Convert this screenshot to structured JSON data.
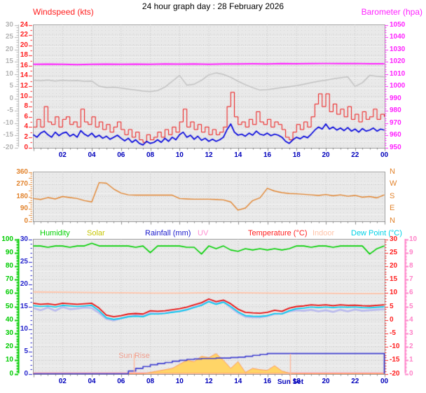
{
  "title": "24 hour graph day : 28 February 2026",
  "legend": {
    "items": [
      {
        "label": "Humidity",
        "color": "#00d000"
      },
      {
        "label": "Solar",
        "color": "#c6c600"
      },
      {
        "label": "Rainfall (mm)",
        "color": "#1a1acc"
      },
      {
        "label": "UV",
        "color": "#ff8fd2"
      },
      {
        "label": "Temperature (°C)",
        "color": "#ff2020"
      },
      {
        "label": "Indoor",
        "color": "#ffc3a8"
      },
      {
        "label": "Dew Point (°C)",
        "color": "#00d2e6"
      }
    ]
  },
  "chart_data": [
    {
      "type": "line",
      "title_left": "Windspeed (kts)",
      "title_right": "Barometer (hpa)",
      "x": {
        "min": 0,
        "max": 24,
        "tick_hours": [
          2,
          4,
          6,
          8,
          10,
          12,
          14,
          16,
          18,
          20,
          22,
          24
        ],
        "tick_labels": [
          "02",
          "04",
          "06",
          "08",
          "10",
          "12",
          "14",
          "16",
          "18",
          "20",
          "22",
          "00"
        ],
        "label_color": "#0000bb"
      },
      "axes": {
        "outer_gray": {
          "min": -20,
          "max": 30,
          "ticks": [
            30,
            25,
            20,
            15,
            10,
            5,
            0,
            -5,
            -10,
            -15,
            -20
          ],
          "color": "#b4b4b4"
        },
        "wind_red": {
          "min": 0,
          "max": 24,
          "ticks": [
            24,
            22,
            20,
            18,
            16,
            14,
            12,
            10,
            8,
            6,
            4,
            2,
            0
          ],
          "color": "#ff2020"
        },
        "baro_magenta": {
          "min": 950,
          "max": 1050,
          "ticks": [
            1050,
            1040,
            1030,
            1020,
            1010,
            1000,
            990,
            980,
            970,
            960,
            950
          ],
          "color": "#ff22ff"
        }
      },
      "series": [
        {
          "name": "gray-trend-line",
          "axis": "outer_gray",
          "color": "#c2c2c2",
          "width": 1.5,
          "dt": 0.5,
          "values": [
            7.4,
            7.2,
            7.5,
            7.1,
            7.4,
            7.2,
            7.3,
            7.0,
            7.1,
            5.0,
            4.4,
            4.6,
            4.2,
            3.8,
            3.4,
            3.0,
            2.8,
            3.2,
            4.6,
            7.0,
            9.4,
            5.4,
            5.8,
            7.4,
            9.6,
            10.4,
            9.8,
            8.6,
            7.0,
            5.6,
            4.4,
            3.4,
            3.6,
            4.0,
            4.4,
            4.8,
            5.2,
            5.8,
            6.4,
            7.0,
            7.4,
            8.0,
            8.4,
            8.8,
            4.9,
            6.4,
            9.4,
            9.0,
            8.8
          ]
        },
        {
          "name": "barometer",
          "axis": "baro_magenta",
          "color": "#ff22ff",
          "width": 2,
          "dt": 1,
          "values": [
            1017.8,
            1018,
            1017.8,
            1017.6,
            1017.9,
            1018,
            1017.8,
            1018,
            1017.9,
            1018.1,
            1018,
            1018.2,
            1017.9,
            1018.1,
            1018.2,
            1018.3,
            1018.2,
            1018.4,
            1018.3,
            1018.4,
            1018.5,
            1018.4,
            1018.5,
            1018.3,
            1018.3
          ]
        },
        {
          "name": "wind-gust",
          "axis": "wind_red",
          "color": "#ee1111",
          "width": 1,
          "style": "step",
          "dt": 0.25,
          "values": [
            4,
            5.5,
            4,
            8,
            5,
            4.5,
            6,
            4,
            5.5,
            6,
            4.5,
            5,
            4,
            7.5,
            5,
            4.5,
            6,
            4,
            5,
            3.5,
            4.5,
            3,
            4,
            5,
            3.5,
            2.5,
            3.5,
            2,
            3,
            1.5,
            1,
            2.5,
            1.5,
            2,
            3,
            2,
            3.5,
            2.5,
            4,
            3,
            5,
            7.5,
            4,
            5,
            3.5,
            4.5,
            3,
            4,
            2.5,
            3.5,
            2.5,
            3,
            4,
            8,
            10.8,
            6,
            4.5,
            5,
            4,
            5.5,
            4.5,
            7,
            5,
            4.5,
            5.5,
            4,
            5,
            4.5,
            3.5,
            2,
            1.5,
            3,
            4.5,
            3.5,
            5,
            4,
            6,
            8.5,
            10.5,
            8,
            10.5,
            7,
            8.5,
            6.5,
            7.5,
            6,
            8,
            5.5,
            6.5,
            5,
            7,
            5.5,
            6,
            7.5,
            5.5,
            6.5,
            6
          ]
        },
        {
          "name": "wind-average",
          "axis": "wind_red",
          "color": "#0000dd",
          "width": 1.7,
          "dt": 0.25,
          "values": [
            2.5,
            2,
            2.8,
            3.2,
            2.5,
            2,
            3,
            2.3,
            2.8,
            3,
            2.2,
            2.6,
            2,
            3.3,
            2.6,
            2.2,
            2.8,
            2,
            2.4,
            1.8,
            2.2,
            1.6,
            2,
            2.4,
            1.8,
            1.3,
            1.8,
            1,
            1.5,
            0.8,
            0.5,
            1.2,
            0.8,
            1,
            1.5,
            1,
            1.8,
            1.2,
            2,
            1.5,
            2.5,
            3,
            2,
            2.4,
            1.6,
            2.2,
            1.4,
            1.8,
            1.2,
            1.6,
            1.2,
            1.5,
            2,
            3.5,
            4.6,
            3,
            2.4,
            2.6,
            2.2,
            2.8,
            2.4,
            3.2,
            2.6,
            2.4,
            2.8,
            2.3,
            2.6,
            2.4,
            2,
            1.2,
            0.8,
            1.5,
            2,
            1.7,
            2.2,
            1.9,
            2.6,
            3.4,
            4,
            3.6,
            4.6,
            3.6,
            4,
            3.4,
            3.8,
            3.3,
            3.9,
            3.2,
            3.6,
            3,
            3.7,
            3.2,
            3.4,
            3.8,
            3.2,
            3.6,
            3.4
          ]
        }
      ]
    },
    {
      "type": "line",
      "axes": {
        "dir_orange": {
          "min": 0,
          "max": 360,
          "ticks": [
            360,
            270,
            180,
            90,
            0
          ],
          "color": "#e2842e"
        }
      },
      "compass": [
        "N",
        "W",
        "S",
        "E",
        "N"
      ],
      "series": [
        {
          "name": "wind-direction",
          "axis": "dir_orange",
          "color": "#e2842e",
          "width": 1.4,
          "dt": 0.5,
          "values": [
            165,
            158,
            172,
            162,
            180,
            172,
            165,
            150,
            140,
            282,
            278,
            235,
            205,
            192,
            190,
            190,
            190,
            190,
            190,
            190,
            165,
            162,
            160,
            160,
            160,
            158,
            155,
            140,
            80,
            95,
            150,
            170,
            240,
            220,
            208,
            202,
            200,
            196,
            192,
            188,
            195,
            185,
            192,
            182,
            188,
            175,
            180,
            170,
            192
          ]
        }
      ]
    },
    {
      "type": "line",
      "x": {
        "min": 0,
        "max": 24,
        "tick_hours": [
          2,
          4,
          6,
          8,
          10,
          12,
          14,
          16,
          18,
          20,
          22,
          24
        ],
        "tick_labels": [
          "02",
          "04",
          "06",
          "08",
          "10",
          "12",
          "14",
          "16",
          "18",
          "20",
          "22",
          "00"
        ],
        "label_color": "#0000bb"
      },
      "axes": {
        "hum_green": {
          "min": 0,
          "max": 100,
          "ticks": [
            100,
            90,
            80,
            70,
            60,
            50,
            40,
            30,
            20,
            10,
            0
          ],
          "color": "#00cc00"
        },
        "rain_blue": {
          "min": 0,
          "max": 30,
          "ticks": [
            30,
            25,
            20,
            15,
            10,
            5,
            0
          ],
          "color": "#2222cc"
        },
        "temp_red": {
          "min": -20,
          "max": 30,
          "ticks": [
            30,
            25,
            20,
            15,
            10,
            5,
            0,
            -5,
            -10,
            -15,
            -20
          ],
          "color": "#ff2020"
        },
        "uv_pink": {
          "min": 0,
          "max": 10,
          "ticks": [
            10,
            9,
            8,
            7,
            6,
            5,
            4,
            3,
            2,
            1,
            0
          ],
          "color": "#ff82c8"
        },
        "solar_rel": {
          "min": 0,
          "max": 100,
          "ticks": [],
          "color": "#c6c600"
        }
      },
      "sun_rise": {
        "label": "Sun Rise",
        "t": 6.9,
        "color": "#f0a090"
      },
      "sun_set": {
        "label": "Sun Set",
        "t": 17.58,
        "color": "#0000bb"
      },
      "series": [
        {
          "name": "uv",
          "axis": "uv_pink",
          "color": "#ff90c0",
          "width": 1.4,
          "dt": 24,
          "values": [
            0.05,
            0.05
          ]
        },
        {
          "name": "solar",
          "axis": "solar_rel",
          "color": "#ff9a5e",
          "fill": "#ffd567",
          "width": 1,
          "dt": 0.5,
          "values": [
            0,
            0,
            0,
            0,
            0,
            0,
            0,
            0,
            0,
            0,
            0,
            0,
            0,
            0,
            0,
            0,
            1,
            2,
            3,
            4,
            7,
            10,
            9,
            13,
            12,
            15,
            10,
            4,
            9,
            1,
            4,
            3,
            2.5,
            6,
            2,
            0.5,
            0,
            0,
            0,
            0,
            0,
            0,
            0,
            0,
            0,
            0,
            0,
            0,
            0
          ]
        },
        {
          "name": "rainfall-cumulative",
          "axis": "rain_blue",
          "color": "#4040d0",
          "width": 1.7,
          "style": "step",
          "dt": 0.5,
          "values": [
            0,
            0,
            0,
            0,
            0,
            0,
            0,
            0,
            0,
            0,
            0,
            0,
            0,
            0.6,
            1.2,
            1.6,
            2,
            2.3,
            2.5,
            2.8,
            3,
            3.2,
            3.3,
            3.4,
            3.4,
            3.5,
            3.5,
            3.6,
            3.7,
            3.9,
            4.1,
            4.3,
            4.5,
            4.5,
            4.5,
            4.5,
            4.5,
            4.5,
            4.5,
            4.5,
            4.5,
            4.5,
            4.5,
            4.5,
            4.5,
            4.5,
            4.5,
            4.5,
            0
          ]
        },
        {
          "name": "wind-chill",
          "axis": "temp_red",
          "color": "rgba(165,165,240,0.7)",
          "width": 2.6,
          "dt": 0.5,
          "values": [
            4.4,
            3.6,
            4.6,
            3.4,
            4.8,
            4.0,
            4.2,
            4.6,
            4.4,
            2.6,
            0.4,
            -0.2,
            0.6,
            1.2,
            1.8,
            1.4,
            2.6,
            2.4,
            2.6,
            3.0,
            3.2,
            3.8,
            4.8,
            5.6,
            7.0,
            6.0,
            6.8,
            4.6,
            2.6,
            1.2,
            1.0,
            1.0,
            1.4,
            2.2,
            2.4,
            3.2,
            3.6,
            3.4,
            3.8,
            3.2,
            3.6,
            3.0,
            3.8,
            3.2,
            3.9,
            3.4,
            3.6,
            3.8,
            4.0
          ]
        },
        {
          "name": "dew-point",
          "axis": "temp_red",
          "color": "#00ccee",
          "width": 1.7,
          "dt": 0.5,
          "values": [
            5.3,
            5.0,
            5.2,
            4.8,
            5.4,
            5.2,
            5.0,
            5.2,
            5.4,
            3.4,
            0.8,
            0.2,
            0.6,
            1.2,
            1.4,
            1.2,
            2.2,
            2.2,
            2.4,
            2.8,
            3.2,
            3.8,
            4.6,
            5.4,
            6.8,
            5.8,
            6.6,
            5.0,
            3.0,
            1.6,
            1.4,
            1.3,
            1.6,
            2.4,
            2.2,
            3.4,
            4.2,
            4.4,
            4.8,
            4.6,
            4.8,
            4.6,
            4.8,
            4.7,
            4.8,
            4.6,
            4.5,
            4.7,
            4.9
          ]
        },
        {
          "name": "temperature",
          "axis": "temp_red",
          "color": "#e81010",
          "width": 1.8,
          "dt": 0.5,
          "values": [
            6.2,
            5.8,
            6.0,
            5.6,
            6.2,
            6.0,
            5.8,
            6.0,
            6.2,
            4.4,
            1.8,
            1.2,
            1.6,
            2.2,
            2.4,
            2.2,
            3.4,
            3.2,
            3.4,
            3.8,
            4.2,
            4.8,
            5.6,
            6.4,
            7.8,
            6.8,
            7.4,
            6.0,
            4.0,
            2.8,
            2.6,
            2.5,
            2.8,
            3.6,
            3.2,
            4.4,
            5.0,
            5.2,
            5.6,
            5.4,
            5.6,
            5.3,
            5.6,
            5.4,
            5.5,
            5.3,
            5.2,
            5.4,
            5.6
          ]
        },
        {
          "name": "indoor-temperature",
          "axis": "temp_red",
          "color": "#ffc3a8",
          "width": 1.8,
          "dt": 2,
          "values": [
            10.4,
            10.3,
            10.2,
            10.1,
            10.0,
            10.0,
            10.1,
            10.1,
            10.0,
            9.9,
            9.9,
            9.8,
            9.8
          ]
        },
        {
          "name": "humidity",
          "axis": "hum_green",
          "color": "#00d000",
          "width": 1.6,
          "dt": 0.5,
          "values": [
            95,
            95,
            94,
            95,
            95,
            94,
            95,
            95,
            97,
            95,
            95,
            95,
            95,
            95,
            94,
            95,
            90,
            95,
            95,
            95,
            95,
            94,
            94,
            89,
            95,
            93,
            95,
            92,
            91,
            93,
            92,
            93,
            92,
            93,
            92,
            93,
            95,
            95,
            94,
            95,
            95,
            94,
            95,
            95,
            95,
            95,
            89,
            93,
            95
          ]
        }
      ]
    }
  ]
}
